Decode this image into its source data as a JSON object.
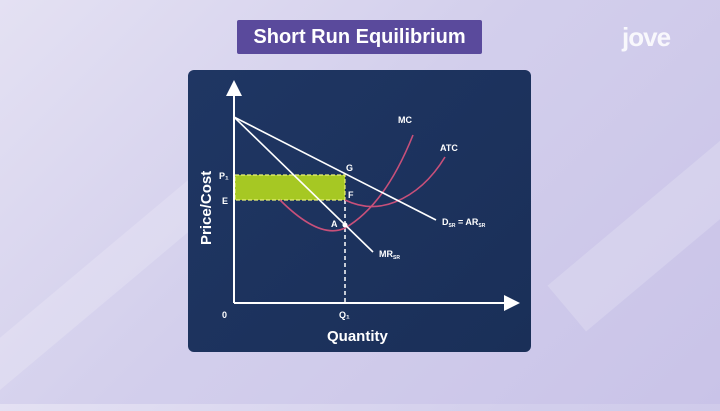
{
  "title": "Short Run Equilibrium",
  "logo": "jove",
  "colors": {
    "background": "#d8d4ec",
    "panel": "#1e3560",
    "title_bg": "#5a4a9c",
    "profit_area": "#a6c823",
    "curves": "#c8507a",
    "lines": "#ffffff"
  },
  "diagram": {
    "y_axis_label": "Price/Cost",
    "x_axis_label": "Quantity",
    "origin_label": "0",
    "labels": {
      "p1": "P₁",
      "e": "E",
      "q1": "Q₁",
      "g": "G",
      "f": "F",
      "a": "A",
      "mc": "MC",
      "atc": "ATC",
      "demand": "D",
      "demand_sub": "SR",
      "ar": " = AR",
      "ar_sub": "SR",
      "mr": "MR",
      "mr_sub": "SR"
    }
  }
}
